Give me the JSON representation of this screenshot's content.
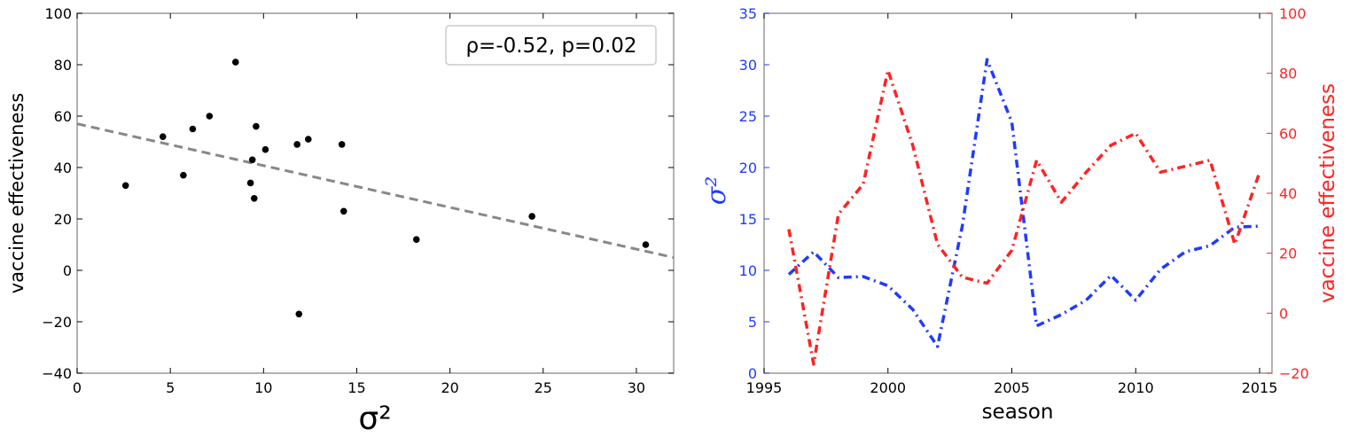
{
  "chart_data": [
    {
      "type": "scatter",
      "xlabel": "σ²",
      "ylabel": "vaccine effectiveness",
      "xlim": [
        0,
        32
      ],
      "ylim": [
        -40,
        100
      ],
      "xticks": [
        0,
        5,
        10,
        15,
        20,
        25,
        30
      ],
      "yticks": [
        -40,
        -20,
        0,
        20,
        40,
        60,
        80,
        100
      ],
      "xtick_labels": [
        "0",
        "5",
        "10",
        "15",
        "20",
        "25",
        "30"
      ],
      "ytick_labels": [
        "−40",
        "−20",
        "0",
        "20",
        "40",
        "60",
        "80",
        "100"
      ],
      "grid": false,
      "annotation": "ρ=-0.52, p=0.02",
      "points": [
        {
          "x": 2.6,
          "y": 33
        },
        {
          "x": 4.6,
          "y": 52
        },
        {
          "x": 5.7,
          "y": 37
        },
        {
          "x": 6.2,
          "y": 55
        },
        {
          "x": 7.1,
          "y": 60
        },
        {
          "x": 8.5,
          "y": 81
        },
        {
          "x": 9.3,
          "y": 34
        },
        {
          "x": 9.4,
          "y": 43
        },
        {
          "x": 9.5,
          "y": 28
        },
        {
          "x": 9.6,
          "y": 56
        },
        {
          "x": 10.1,
          "y": 47
        },
        {
          "x": 11.8,
          "y": 49
        },
        {
          "x": 11.9,
          "y": -17
        },
        {
          "x": 12.4,
          "y": 51
        },
        {
          "x": 14.2,
          "y": 49
        },
        {
          "x": 14.3,
          "y": 23
        },
        {
          "x": 18.2,
          "y": 12
        },
        {
          "x": 24.4,
          "y": 21
        },
        {
          "x": 30.5,
          "y": 10
        }
      ],
      "trendline": {
        "x": [
          0,
          32
        ],
        "y": [
          57,
          5
        ],
        "style": "dashed",
        "color": "#888888"
      },
      "colors": {
        "points": "#000000",
        "trendline": "#888888"
      }
    },
    {
      "type": "line",
      "xlabel": "season",
      "ylabel_left": "σ²",
      "ylabel_right": "vaccine effectiveness",
      "xlim": [
        1995,
        2015.5
      ],
      "ylim_left": [
        0,
        35
      ],
      "ylim_right": [
        -20,
        100
      ],
      "xticks": [
        1995,
        2000,
        2005,
        2010,
        2015
      ],
      "xtick_labels": [
        "1995",
        "2000",
        "2005",
        "2010",
        "2015"
      ],
      "yticks_left": [
        0,
        5,
        10,
        15,
        20,
        25,
        30,
        35
      ],
      "ytick_labels_left": [
        "0",
        "5",
        "10",
        "15",
        "20",
        "25",
        "30",
        "35"
      ],
      "yticks_right": [
        -20,
        0,
        20,
        40,
        60,
        80,
        100
      ],
      "ytick_labels_right": [
        "−20",
        "0",
        "20",
        "40",
        "60",
        "80",
        "100"
      ],
      "grid": false,
      "series": [
        {
          "axis": "left",
          "color": "#1f3bff",
          "style": "dashdot",
          "x": [
            1996,
            1997,
            1998,
            1999,
            2000,
            2001,
            2002,
            2003,
            2004,
            2005,
            2006,
            2007,
            2008,
            2009,
            2010,
            2011,
            2012,
            2013,
            2014,
            2015
          ],
          "y": [
            9.6,
            11.8,
            9.3,
            9.4,
            8.5,
            6.2,
            2.6,
            14.3,
            30.5,
            24.4,
            4.6,
            5.7,
            7.1,
            9.5,
            7.1,
            10.1,
            11.8,
            12.4,
            14.2,
            14.3
          ]
        },
        {
          "axis": "right",
          "color": "#ff2222",
          "style": "dashdot",
          "x": [
            1996,
            1997,
            1998,
            1999,
            2000,
            2001,
            2002,
            2003,
            2004,
            2005,
            2006,
            2007,
            2008,
            2009,
            2010,
            2011,
            2012,
            2013,
            2014,
            2015
          ],
          "y": [
            28,
            -17,
            33,
            43,
            81,
            56,
            23,
            12,
            10,
            21,
            51,
            37,
            47,
            56,
            60,
            47,
            49,
            51,
            23,
            47
          ]
        }
      ],
      "colors": {
        "left_axis": "#1f3bff",
        "right_axis": "#ff2222"
      }
    }
  ]
}
